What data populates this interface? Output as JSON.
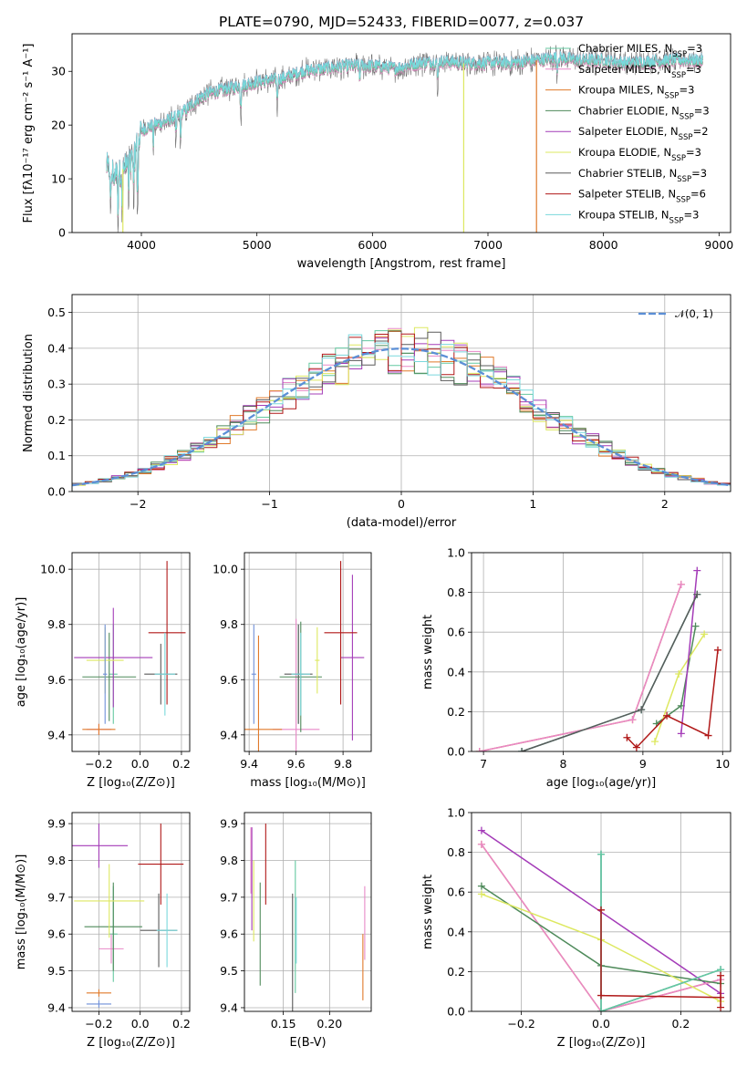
{
  "colors": {
    "chabrier_miles": "#64c8a0",
    "salpeter_miles": "#e888c8",
    "kroupa_miles": "#e07a2a",
    "chabrier_elodie": "#4e8a5a",
    "salpeter_elodie": "#a43cb8",
    "kroupa_elodie": "#dde860",
    "chabrier_stelib": "#5a5a5a",
    "salpeter_stelib": "#b01818",
    "kroupa_stelib": "#7ad8dc",
    "normal": "#5b8fd6",
    "spectrum_gray": "#707070",
    "zmet_blue": "#6e8fd8"
  },
  "chart_data": [
    {
      "id": "spectrum",
      "type": "line",
      "title": "PLATE=0790, MJD=52433, FIBERID=0077, z=0.037",
      "xlabel": "wavelength [Angstrom, rest frame]",
      "ylabel": "Flux [fλ10⁻¹⁷ erg cm⁻² s⁻¹ A⁻¹]",
      "xlim": [
        3400,
        9100
      ],
      "ylim": [
        0,
        37
      ],
      "xticks": [
        4000,
        5000,
        6000,
        7000,
        8000,
        9000
      ],
      "yticks": [
        0,
        10,
        20,
        30
      ],
      "grid": false,
      "legend_position": "right",
      "legend": [
        {
          "label": "Chabrier MILES, N",
          "sub": "SSP",
          "suffix": "=3",
          "color_key": "chabrier_miles"
        },
        {
          "label": "Salpeter MILES, N",
          "sub": "SSP",
          "suffix": "=3",
          "color_key": "salpeter_miles"
        },
        {
          "label": "Kroupa MILES, N",
          "sub": "SSP",
          "suffix": "=3",
          "color_key": "kroupa_miles"
        },
        {
          "label": "Chabrier ELODIE, N",
          "sub": "SSP",
          "suffix": "=3",
          "color_key": "chabrier_elodie"
        },
        {
          "label": "Salpeter ELODIE, N",
          "sub": "SSP",
          "suffix": "=2",
          "color_key": "salpeter_elodie"
        },
        {
          "label": "Kroupa ELODIE, N",
          "sub": "SSP",
          "suffix": "=3",
          "color_key": "kroupa_elodie"
        },
        {
          "label": "Chabrier STELIB, N",
          "sub": "SSP",
          "suffix": "=3",
          "color_key": "chabrier_stelib"
        },
        {
          "label": "Salpeter STELIB, N",
          "sub": "SSP",
          "suffix": "=6",
          "color_key": "salpeter_stelib"
        },
        {
          "label": "Kroupa STELIB, N",
          "sub": "SSP",
          "suffix": "=3",
          "color_key": "kroupa_stelib"
        }
      ],
      "continuum": [
        [
          3700,
          12
        ],
        [
          3750,
          10.5
        ],
        [
          3800,
          11
        ],
        [
          3900,
          13
        ],
        [
          3950,
          15
        ],
        [
          4000,
          19
        ],
        [
          4100,
          20
        ],
        [
          4200,
          20.5
        ],
        [
          4300,
          21.5
        ],
        [
          4400,
          23
        ],
        [
          4500,
          25
        ],
        [
          4600,
          26
        ],
        [
          4700,
          26.5
        ],
        [
          4800,
          27
        ],
        [
          5000,
          28
        ],
        [
          5200,
          28.5
        ],
        [
          5400,
          30
        ],
        [
          5600,
          30.5
        ],
        [
          5800,
          31
        ],
        [
          6000,
          31
        ],
        [
          6200,
          30.5
        ],
        [
          6400,
          31.5
        ],
        [
          6600,
          31.8
        ],
        [
          6800,
          31.5
        ],
        [
          7000,
          31.5
        ],
        [
          7200,
          31.5
        ],
        [
          7400,
          32
        ],
        [
          7600,
          32.5
        ],
        [
          7800,
          32
        ],
        [
          8000,
          32
        ],
        [
          8200,
          31.5
        ],
        [
          8400,
          31.8
        ],
        [
          8600,
          32
        ],
        [
          8800,
          32
        ]
      ],
      "model_dropouts": [
        {
          "x": 6790,
          "color_key": "kroupa_elodie"
        },
        {
          "x": 7420,
          "color_key": "kroupa_miles"
        },
        {
          "x": 3840,
          "color_key": "kroupa_elodie"
        }
      ]
    },
    {
      "id": "residual_hist",
      "type": "step-histogram",
      "xlabel": "(data-model)/error",
      "ylabel": "Normed distribution",
      "xlim": [
        -2.5,
        2.5
      ],
      "ylim": [
        0,
        0.55
      ],
      "xticks": [
        -2,
        -1,
        0,
        1,
        2
      ],
      "yticks": [
        0.0,
        0.1,
        0.2,
        0.3,
        0.4,
        0.5
      ],
      "grid": true,
      "legend_position": "upper right",
      "normal_label": "𝒩(0, 1)",
      "normal_mu": 0,
      "normal_sigma": 1,
      "bin_width": 0.1
    },
    {
      "id": "age_vs_Z",
      "type": "errorbar",
      "xlabel": "Z [log₁₀(Z/Z⊙)]",
      "ylabel": "age  [log₁₀(age/yr)]",
      "xlim": [
        -0.33,
        0.24
      ],
      "ylim": [
        9.34,
        10.06
      ],
      "xticks": [
        -0.2,
        0.0,
        0.2
      ],
      "yticks": [
        9.4,
        9.6,
        9.8,
        10.0
      ],
      "grid": true,
      "points": [
        {
          "color_key": "chabrier_miles",
          "x": -0.13,
          "xerr": 0.02,
          "y": 9.62,
          "yerr": 0.18
        },
        {
          "color_key": "salpeter_miles",
          "x": -0.2,
          "xerr": 0.06,
          "y": 9.42,
          "yerr": 0.02
        },
        {
          "color_key": "kroupa_miles",
          "x": -0.2,
          "xerr": 0.08,
          "y": 9.42,
          "yerr": 0.02
        },
        {
          "color_key": "chabrier_elodie",
          "x": -0.15,
          "xerr": 0.13,
          "y": 9.61,
          "yerr": 0.16
        },
        {
          "color_key": "salpeter_elodie",
          "x": -0.13,
          "xerr": 0.19,
          "y": 9.68,
          "yerr": 0.18
        },
        {
          "color_key": "kroupa_elodie",
          "x": -0.17,
          "xerr": 0.09,
          "y": 9.67,
          "yerr": 0.12
        },
        {
          "color_key": "chabrier_stelib",
          "x": 0.1,
          "xerr": 0.08,
          "y": 9.62,
          "yerr": 0.11
        },
        {
          "color_key": "salpeter_stelib",
          "x": 0.13,
          "xerr": 0.09,
          "y": 9.77,
          "yerr": 0.26
        },
        {
          "color_key": "kroupa_stelib",
          "x": 0.12,
          "xerr": 0.05,
          "y": 9.62,
          "yerr": 0.15
        },
        {
          "color_key": "zmet_blue",
          "x": -0.17,
          "xerr": 0.01,
          "y": 9.62,
          "yerr": 0.18
        }
      ]
    },
    {
      "id": "age_vs_mass",
      "type": "errorbar",
      "xlabel": "mass [log₁₀(M/M⊙)]",
      "ylabel": "",
      "xlim": [
        9.38,
        9.92
      ],
      "ylim": [
        9.34,
        10.06
      ],
      "xticks": [
        9.4,
        9.6,
        9.8
      ],
      "yticks": [
        9.4,
        9.6,
        9.8,
        10.0
      ],
      "grid": true,
      "points": [
        {
          "color_key": "chabrier_miles",
          "x": 9.61,
          "xerr": 0.02,
          "y": 9.62,
          "yerr": 0.18
        },
        {
          "color_key": "salpeter_miles",
          "x": 9.6,
          "xerr": 0.1,
          "y": 9.42,
          "yerr": 0.4
        },
        {
          "color_key": "kroupa_miles",
          "x": 9.44,
          "xerr": 0.1,
          "y": 9.42,
          "yerr": 0.34
        },
        {
          "color_key": "chabrier_elodie",
          "x": 9.62,
          "xerr": 0.09,
          "y": 9.61,
          "yerr": 0.2
        },
        {
          "color_key": "salpeter_elodie",
          "x": 9.84,
          "xerr": 0.05,
          "y": 9.68,
          "yerr": 0.3
        },
        {
          "color_key": "kroupa_elodie",
          "x": 9.69,
          "xerr": 0.01,
          "y": 9.67,
          "yerr": 0.12
        },
        {
          "color_key": "chabrier_stelib",
          "x": 9.61,
          "xerr": 0.06,
          "y": 9.62,
          "yerr": 0.18
        },
        {
          "color_key": "salpeter_stelib",
          "x": 9.79,
          "xerr": 0.07,
          "y": 9.77,
          "yerr": 0.26
        },
        {
          "color_key": "kroupa_stelib",
          "x": 9.62,
          "xerr": 0.04,
          "y": 9.62,
          "yerr": 0.15
        },
        {
          "color_key": "zmet_blue",
          "x": 9.42,
          "xerr": 0.01,
          "y": 9.62,
          "yerr": 0.18
        }
      ]
    },
    {
      "id": "massweight_vs_age",
      "type": "line",
      "xlabel": "age  [log₁₀(age/yr)]",
      "ylabel": "mass weight",
      "xlim": [
        6.85,
        10.1
      ],
      "ylim": [
        0,
        1.0
      ],
      "xticks": [
        7,
        8,
        9,
        10
      ],
      "yticks": [
        0.0,
        0.2,
        0.4,
        0.6,
        0.8,
        1.0
      ],
      "grid": true,
      "series": [
        {
          "color_key": "kroupa_miles",
          "x": [
            6.95,
            8.87,
            9.48
          ],
          "y": [
            0.0,
            0.16,
            0.84
          ]
        },
        {
          "color_key": "salpeter_miles",
          "x": [
            6.95,
            8.87,
            9.48
          ],
          "y": [
            0.0,
            0.16,
            0.84
          ]
        },
        {
          "color_key": "kroupa_stelib",
          "x": [
            7.48,
            8.98,
            9.68
          ],
          "y": [
            0.0,
            0.21,
            0.79
          ]
        },
        {
          "color_key": "chabrier_miles",
          "x": [
            7.48,
            8.98,
            9.68
          ],
          "y": [
            0.0,
            0.21,
            0.79
          ]
        },
        {
          "color_key": "chabrier_elodie",
          "x": [
            9.17,
            9.48,
            9.66
          ],
          "y": [
            0.14,
            0.23,
            0.63
          ]
        },
        {
          "color_key": "kroupa_elodie",
          "x": [
            9.15,
            9.45,
            9.77
          ],
          "y": [
            0.05,
            0.39,
            0.59
          ]
        },
        {
          "color_key": "salpeter_elodie",
          "x": [
            9.48,
            9.68
          ],
          "y": [
            0.09,
            0.91
          ]
        },
        {
          "color_key": "salpeter_stelib",
          "x": [
            8.8,
            8.92,
            9.3,
            9.82,
            9.94
          ],
          "y": [
            0.07,
            0.02,
            0.18,
            0.08,
            0.51
          ]
        },
        {
          "color_key": "chabrier_stelib",
          "x": [
            7.48,
            8.98,
            9.68
          ],
          "y": [
            0.0,
            0.21,
            0.79
          ]
        }
      ]
    },
    {
      "id": "mass_vs_Z",
      "type": "errorbar",
      "xlabel": "Z [log₁₀(Z/Z⊙)]",
      "ylabel": "mass [log₁₀(M/M⊙)]",
      "xlim": [
        -0.33,
        0.24
      ],
      "ylim": [
        9.39,
        9.93
      ],
      "xticks": [
        -0.2,
        0.0,
        0.2
      ],
      "yticks": [
        9.4,
        9.5,
        9.6,
        9.7,
        9.8,
        9.9
      ],
      "grid": true,
      "points": [
        {
          "color_key": "chabrier_miles",
          "x": -0.13,
          "xerr": 0.02,
          "y": 9.6,
          "yerr": 0.13
        },
        {
          "color_key": "salpeter_miles",
          "x": -0.14,
          "xerr": 0.06,
          "y": 9.56,
          "yerr": 0.04
        },
        {
          "color_key": "kroupa_miles",
          "x": -0.2,
          "xerr": 0.06,
          "y": 9.44,
          "yerr": 0.01
        },
        {
          "color_key": "chabrier_elodie",
          "x": -0.13,
          "xerr": 0.14,
          "y": 9.62,
          "yerr": 0.12
        },
        {
          "color_key": "salpeter_elodie",
          "x": -0.2,
          "xerr": 0.14,
          "y": 9.84,
          "yerr": 0.06
        },
        {
          "color_key": "kroupa_elodie",
          "x": -0.15,
          "xerr": 0.17,
          "y": 9.69,
          "yerr": 0.1
        },
        {
          "color_key": "chabrier_stelib",
          "x": 0.09,
          "xerr": 0.09,
          "y": 9.61,
          "yerr": 0.1
        },
        {
          "color_key": "salpeter_stelib",
          "x": 0.1,
          "xerr": 0.11,
          "y": 9.79,
          "yerr": 0.11
        },
        {
          "color_key": "kroupa_stelib",
          "x": 0.13,
          "xerr": 0.05,
          "y": 9.61,
          "yerr": 0.1
        },
        {
          "color_key": "zmet_blue",
          "x": -0.2,
          "xerr": 0.06,
          "y": 9.41,
          "yerr": 0.01
        }
      ]
    },
    {
      "id": "mass_vs_ebv",
      "type": "errorbar",
      "xlabel": "E(B-V)",
      "ylabel": "",
      "xlim": [
        0.108,
        0.245
      ],
      "ylim": [
        9.39,
        9.93
      ],
      "xticks": [
        0.15,
        0.2
      ],
      "yticks": [
        9.4,
        9.5,
        9.6,
        9.7,
        9.8,
        9.9
      ],
      "grid": true,
      "points": [
        {
          "color_key": "chabrier_miles",
          "x": 0.163,
          "yerr": 0.18,
          "y": 9.62
        },
        {
          "color_key": "salpeter_miles",
          "x": 0.115,
          "yerr": 0.09,
          "y": 9.8
        },
        {
          "color_key": "kroupa_miles",
          "x": 0.236,
          "yerr": 0.09,
          "y": 9.51
        },
        {
          "color_key": "chabrier_elodie",
          "x": 0.125,
          "yerr": 0.14,
          "y": 9.6
        },
        {
          "color_key": "salpeter_elodie",
          "x": 0.116,
          "yerr": 0.14,
          "y": 9.75
        },
        {
          "color_key": "kroupa_elodie",
          "x": 0.118,
          "yerr": 0.11,
          "y": 9.69
        },
        {
          "color_key": "chabrier_stelib",
          "x": 0.16,
          "yerr": 0.19,
          "y": 9.52
        },
        {
          "color_key": "salpeter_stelib",
          "x": 0.131,
          "yerr": 0.11,
          "y": 9.79
        },
        {
          "color_key": "kroupa_stelib",
          "x": 0.164,
          "yerr": 0.09,
          "y": 9.61
        },
        {
          "color_key": "salpeter_miles",
          "x": 0.238,
          "yerr": 0.1,
          "y": 9.63
        }
      ]
    },
    {
      "id": "massweight_vs_Z",
      "type": "line",
      "xlabel": "Z [log₁₀(Z/Z⊙)]",
      "ylabel": "mass weight",
      "xlim": [
        -0.325,
        0.325
      ],
      "ylim": [
        0,
        1.0
      ],
      "xticks": [
        -0.2,
        0.0,
        0.2
      ],
      "yticks": [
        0.0,
        0.2,
        0.4,
        0.6,
        0.8,
        1.0
      ],
      "grid": true,
      "series": [
        {
          "color_key": "salpeter_elodie",
          "x": [
            -0.3,
            0.3
          ],
          "y": [
            0.91,
            0.09
          ]
        },
        {
          "color_key": "kroupa_miles",
          "x": [
            -0.3,
            0.0,
            0.3
          ],
          "y": [
            0.84,
            0.0,
            0.16
          ]
        },
        {
          "color_key": "salpeter_miles",
          "x": [
            -0.3,
            0.0,
            0.3
          ],
          "y": [
            0.84,
            0.0,
            0.16
          ]
        },
        {
          "color_key": "chabrier_elodie",
          "x": [
            -0.3,
            0.0,
            0.3
          ],
          "y": [
            0.63,
            0.23,
            0.14
          ]
        },
        {
          "color_key": "kroupa_elodie",
          "x": [
            -0.3,
            0.0,
            0.3
          ],
          "y": [
            0.59,
            0.36,
            0.05
          ]
        },
        {
          "color_key": "chabrier_stelib",
          "x": [
            0.0,
            0.0,
            0.3
          ],
          "y": [
            0.79,
            0.0,
            0.21
          ]
        },
        {
          "color_key": "kroupa_stelib",
          "x": [
            0.0,
            0.0,
            0.3
          ],
          "y": [
            0.79,
            0.0,
            0.21
          ]
        },
        {
          "color_key": "chabrier_miles",
          "x": [
            0.0,
            0.0,
            0.3
          ],
          "y": [
            0.79,
            0.0,
            0.21
          ]
        },
        {
          "color_key": "salpeter_stelib",
          "x": [
            0.0,
            0.0,
            0.3,
            0.3,
            0.3
          ],
          "y": [
            0.51,
            0.08,
            0.07,
            0.02,
            0.18
          ]
        }
      ]
    }
  ]
}
